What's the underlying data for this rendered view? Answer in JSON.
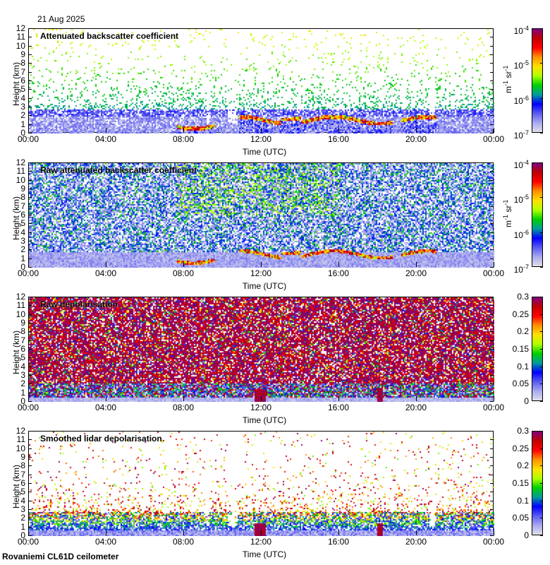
{
  "header": {
    "date": "21 Aug 2025"
  },
  "footer": {
    "instrument": "Rovaniemi CL61D ceilometer"
  },
  "colormap": [
    "#e0e0ea",
    "#a8a8f0",
    "#5a5af0",
    "#0000ff",
    "#009c9c",
    "#00d000",
    "#b0ff00",
    "#ffe000",
    "#ff9000",
    "#ff0000",
    "#c00000",
    "#800080"
  ],
  "chart_data": [
    {
      "type": "heatmap",
      "title": "Attenuated backscatter coefficient",
      "xlabel": "Time (UTC)",
      "ylabel": "Height (km)",
      "xticks": [
        "00:00",
        "04:00",
        "08:00",
        "12:00",
        "16:00",
        "20:00",
        "00:00"
      ],
      "yticks": [
        "0",
        "1",
        "2",
        "3",
        "4",
        "5",
        "6",
        "7",
        "8",
        "9",
        "10",
        "11",
        "12"
      ],
      "ylim": [
        0,
        12
      ],
      "colorbar": {
        "scale": "log",
        "range": [
          1e-07,
          0.0001
        ],
        "ticks": [
          {
            "base": "10",
            "exp": "-4"
          },
          {
            "base": "10",
            "exp": "-5"
          },
          {
            "base": "10",
            "exp": "-6"
          },
          {
            "base": "10",
            "exp": "-7"
          }
        ],
        "unit": "m",
        "unit_exp1": "-1",
        "unit2": " sr",
        "unit_exp2": "-1"
      },
      "kind": "att"
    },
    {
      "type": "heatmap",
      "title": "Raw attenuated backscatter coefficient",
      "xlabel": "Time (UTC)",
      "ylabel": "Height (km)",
      "xticks": [
        "00:00",
        "04:00",
        "08:00",
        "12:00",
        "16:00",
        "20:00",
        "00:00"
      ],
      "yticks": [
        "0",
        "1",
        "2",
        "3",
        "4",
        "5",
        "6",
        "7",
        "8",
        "9",
        "10",
        "11",
        "12"
      ],
      "ylim": [
        0,
        12
      ],
      "colorbar": {
        "scale": "log",
        "range": [
          1e-07,
          0.0001
        ],
        "ticks": [
          {
            "base": "10",
            "exp": "-4"
          },
          {
            "base": "10",
            "exp": "-5"
          },
          {
            "base": "10",
            "exp": "-6"
          },
          {
            "base": "10",
            "exp": "-7"
          }
        ],
        "unit": "m",
        "unit_exp1": "-1",
        "unit2": " sr",
        "unit_exp2": "-1"
      },
      "kind": "raw"
    },
    {
      "type": "heatmap",
      "title": "Raw depolarisation",
      "xlabel": "Time (UTC)",
      "ylabel": "Height (km)",
      "xticks": [
        "00:00",
        "04:00",
        "08:00",
        "12:00",
        "16:00",
        "20:00",
        "00:00"
      ],
      "yticks": [
        "0",
        "1",
        "2",
        "3",
        "4",
        "5",
        "6",
        "7",
        "8",
        "9",
        "10",
        "11",
        "12"
      ],
      "ylim": [
        0,
        12
      ],
      "colorbar": {
        "scale": "linear",
        "range": [
          0,
          0.3
        ],
        "ticks": [
          {
            "base": "0.3"
          },
          {
            "base": "0.25"
          },
          {
            "base": "0.2"
          },
          {
            "base": "0.15"
          },
          {
            "base": "0.1"
          },
          {
            "base": "0.05"
          },
          {
            "base": "0"
          }
        ]
      },
      "kind": "rawdep"
    },
    {
      "type": "heatmap",
      "title": "Smoothed lidar depolarisation",
      "xlabel": "Time (UTC)",
      "ylabel": "Height (km)",
      "xticks": [
        "00:00",
        "04:00",
        "08:00",
        "12:00",
        "16:00",
        "20:00",
        "00:00"
      ],
      "yticks": [
        "0",
        "1",
        "2",
        "3",
        "4",
        "5",
        "6",
        "7",
        "8",
        "9",
        "10",
        "11",
        "12"
      ],
      "ylim": [
        0,
        12
      ],
      "colorbar": {
        "scale": "linear",
        "range": [
          0,
          0.3
        ],
        "ticks": [
          {
            "base": "0.3"
          },
          {
            "base": "0.25"
          },
          {
            "base": "0.2"
          },
          {
            "base": "0.15"
          },
          {
            "base": "0.1"
          },
          {
            "base": "0.05"
          },
          {
            "base": "0"
          }
        ]
      },
      "kind": "smdep"
    }
  ]
}
